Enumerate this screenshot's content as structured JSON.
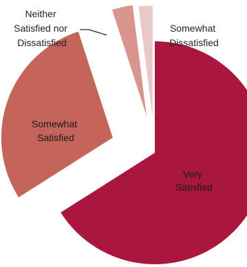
{
  "chart_data": {
    "type": "pie",
    "exploded": true,
    "slices": [
      {
        "label": "Very Satisfied",
        "value": 66,
        "color": "#a9173f"
      },
      {
        "label": "Somewhat Satisfied",
        "value": 29,
        "color": "#c4645b"
      },
      {
        "label": "Neither Satisfied nor Dissatisfied",
        "value": 3,
        "color": "#d89590"
      },
      {
        "label": "Somewhat Dissatisfied",
        "value": 2,
        "color": "#e9c9c8"
      }
    ],
    "labels": {
      "very_satisfied": [
        "Very",
        "Satisfied"
      ],
      "somewhat_satisfied": [
        "Somewhat",
        "Satisfied"
      ],
      "neither": [
        "Neither",
        "Satisfied nor",
        "Dissatisfied"
      ],
      "somewhat_dissatisfied": [
        "Somewhat",
        "Dissatisfied"
      ]
    }
  }
}
